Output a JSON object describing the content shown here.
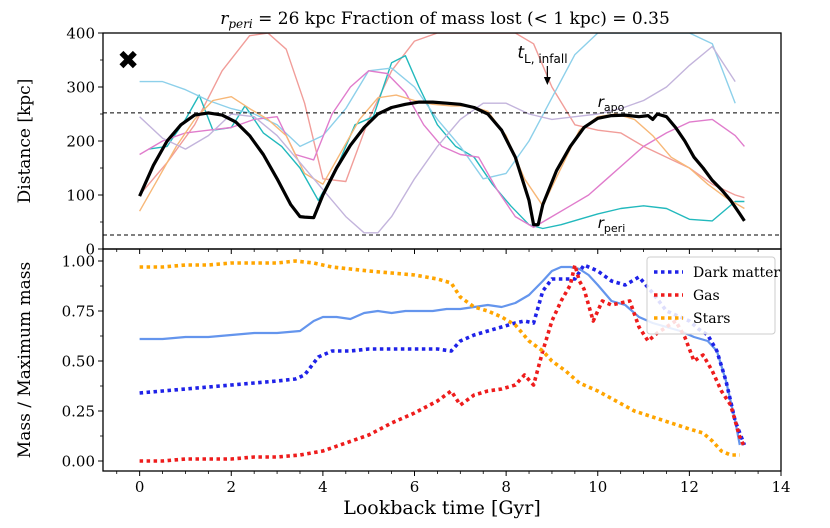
{
  "chart_data": {
    "type": "line",
    "title_prefix": "r",
    "title_sub": "peri",
    "title_rest": " = 26 kpc  Fraction of mass lost (< 1 kpc) = 0.35",
    "xlabel": "Lookback time [Gyr]",
    "xlim": [
      -0.8,
      14
    ],
    "xticks": [
      0,
      2,
      4,
      6,
      8,
      10,
      12,
      14
    ],
    "top": {
      "ylabel": "Distance [kpc]",
      "ylim": [
        0,
        400
      ],
      "yticks": [
        0,
        100,
        200,
        300,
        400
      ],
      "r_apo": 252,
      "r_peri": 26,
      "apo_label": "r",
      "apo_sub": "apo",
      "peri_label": "r",
      "peri_sub": "peri",
      "infall_label": "t",
      "infall_sub": "L, infall",
      "infall_time": 8.9,
      "marker_time": -0.25,
      "marker_value": 350,
      "main": {
        "name": "orbit",
        "color": "#000000",
        "x": [
          0,
          0.3,
          0.6,
          0.9,
          1.2,
          1.5,
          1.8,
          2.1,
          2.4,
          2.7,
          3.0,
          3.3,
          3.5,
          3.6,
          3.8,
          4.0,
          4.3,
          4.6,
          4.9,
          5.2,
          5.5,
          5.8,
          6.1,
          6.4,
          6.7,
          7.0,
          7.3,
          7.6,
          7.9,
          8.2,
          8.5,
          8.6,
          8.7,
          8.8,
          9.1,
          9.4,
          9.7,
          10.0,
          10.3,
          10.6,
          10.9,
          11.1,
          11.2,
          11.3,
          11.5,
          11.7,
          11.9,
          12.1,
          12.3,
          12.5,
          12.7,
          12.9,
          13.1,
          13.2
        ],
        "y": [
          98,
          155,
          200,
          230,
          248,
          252,
          248,
          235,
          210,
          175,
          130,
          82,
          60,
          59,
          58,
          100,
          150,
          192,
          225,
          250,
          262,
          268,
          272,
          272,
          270,
          268,
          262,
          250,
          220,
          170,
          90,
          45,
          45,
          82,
          145,
          190,
          225,
          242,
          247,
          248,
          245,
          247,
          240,
          250,
          245,
          225,
          200,
          170,
          150,
          127,
          110,
          90,
          65,
          52
        ]
      },
      "tracks": [
        {
          "name": "salmon-track",
          "color": "#f19d99",
          "x": [
            0,
            0.6,
            1.2,
            1.8,
            2.4,
            2.8,
            3.2,
            3.6,
            4.0,
            4.5,
            5.0,
            5.5,
            6.0,
            6.5,
            7.0,
            7.4,
            7.8,
            8.2,
            8.6,
            9.0,
            9.5,
            10.0,
            10.5,
            11.0,
            11.5,
            12.0,
            12.5,
            13.0,
            13.2
          ],
          "y": [
            100,
            160,
            230,
            330,
            395,
            400,
            370,
            270,
            130,
            125,
            240,
            330,
            385,
            400,
            400,
            400,
            400,
            400,
            380,
            300,
            230,
            220,
            215,
            190,
            170,
            150,
            120,
            100,
            95
          ]
        },
        {
          "name": "teal-track",
          "color": "#22b9bd",
          "x": [
            0.2,
            0.6,
            1.0,
            1.3,
            1.6,
            2.0,
            2.3,
            2.7,
            3.1,
            3.5,
            3.9,
            4.3,
            4.7,
            5.1,
            5.5,
            5.8,
            6.1,
            6.5,
            6.9,
            7.3,
            7.7,
            8.1,
            8.5,
            8.8,
            9.2,
            9.6,
            10.0,
            10.5,
            11.0,
            11.5,
            12.0,
            12.5,
            13.0,
            13.2
          ],
          "y": [
            185,
            190,
            240,
            285,
            220,
            225,
            265,
            215,
            190,
            150,
            90,
            150,
            230,
            245,
            345,
            358,
            300,
            230,
            190,
            170,
            120,
            80,
            45,
            38,
            45,
            55,
            65,
            75,
            80,
            75,
            55,
            52,
            88,
            88
          ]
        },
        {
          "name": "lightblue-track",
          "color": "#8dd0ea",
          "x": [
            0,
            0.5,
            1.0,
            1.5,
            2.0,
            2.5,
            3.0,
            3.5,
            4.0,
            4.5,
            5.0,
            5.5,
            6.0,
            6.5,
            7.0,
            7.5,
            8.0,
            8.5,
            9.0,
            9.5,
            10.0,
            10.5,
            11.0,
            11.5,
            12.0,
            12.5,
            13.0
          ],
          "y": [
            310,
            310,
            295,
            275,
            260,
            250,
            230,
            190,
            210,
            260,
            330,
            335,
            300,
            240,
            190,
            130,
            140,
            200,
            280,
            360,
            400,
            400,
            400,
            400,
            400,
            380,
            270
          ]
        },
        {
          "name": "pink-track",
          "color": "#e07ccc",
          "x": [
            0,
            0.5,
            1.0,
            1.5,
            2.0,
            2.5,
            3.0,
            3.4,
            3.8,
            4.2,
            4.6,
            5.0,
            5.4,
            5.8,
            6.2,
            6.6,
            7.0,
            7.4,
            7.8,
            8.2,
            8.6,
            9.0,
            9.4,
            9.8,
            10.2,
            10.6,
            11.0,
            11.5,
            12.0,
            12.5,
            13.0,
            13.2
          ],
          "y": [
            175,
            200,
            215,
            220,
            225,
            240,
            245,
            175,
            165,
            250,
            300,
            330,
            325,
            290,
            230,
            190,
            175,
            170,
            110,
            60,
            40,
            60,
            80,
            100,
            130,
            160,
            190,
            215,
            235,
            240,
            210,
            190
          ]
        },
        {
          "name": "orange-track",
          "color": "#f7b777",
          "x": [
            0,
            0.4,
            0.8,
            1.2,
            1.6,
            2.0,
            2.4,
            2.8,
            3.2,
            3.6,
            4.0,
            4.4,
            4.8,
            5.2,
            5.6,
            6.0,
            6.4,
            6.8,
            7.2,
            7.6,
            8.0,
            8.4,
            8.8,
            9.2,
            9.6,
            10.0,
            10.4,
            10.8,
            11.2,
            11.6,
            12.0,
            12.4,
            12.8,
            13.2
          ],
          "y": [
            70,
            130,
            190,
            240,
            275,
            282,
            260,
            240,
            210,
            140,
            120,
            180,
            240,
            280,
            285,
            275,
            268,
            265,
            265,
            255,
            210,
            130,
            80,
            150,
            220,
            245,
            250,
            240,
            210,
            170,
            150,
            120,
            95,
            75
          ]
        },
        {
          "name": "lavender-track",
          "color": "#c3b4dc",
          "x": [
            0,
            0.5,
            1.0,
            1.5,
            2.0,
            2.5,
            3.0,
            3.5,
            4.0,
            4.5,
            4.9,
            5.2,
            5.5,
            6.0,
            6.5,
            7.0,
            7.5,
            8.0,
            8.5,
            9.0,
            9.5,
            10.0,
            10.5,
            11.0,
            11.5,
            12.0,
            12.5,
            13.0
          ],
          "y": [
            245,
            205,
            185,
            210,
            250,
            245,
            210,
            160,
            110,
            60,
            30,
            30,
            60,
            130,
            190,
            240,
            270,
            270,
            250,
            240,
            245,
            250,
            260,
            275,
            300,
            340,
            375,
            310
          ]
        }
      ]
    },
    "bottom": {
      "ylabel": "Mass / Maximum mass",
      "ylim": [
        -0.05,
        1.06
      ],
      "yticks": [
        0.0,
        0.25,
        0.5,
        0.75,
        1.0
      ],
      "ytick_labels": [
        "0.00",
        "0.25",
        "0.50",
        "0.75",
        "1.00"
      ],
      "series": [
        {
          "name": "Total",
          "color": "#6495ed",
          "style": "solid",
          "in_legend": false,
          "x": [
            0,
            0.5,
            1.0,
            1.5,
            2.0,
            2.5,
            3.0,
            3.5,
            3.8,
            4.0,
            4.3,
            4.6,
            4.9,
            5.2,
            5.5,
            5.8,
            6.1,
            6.4,
            6.7,
            7.0,
            7.3,
            7.6,
            7.9,
            8.2,
            8.5,
            8.8,
            9.0,
            9.2,
            9.4,
            9.6,
            9.8,
            10.0,
            10.3,
            10.6,
            10.9,
            11.2,
            11.5,
            11.8,
            12.1,
            12.4,
            12.6,
            12.8,
            13.0,
            13.1
          ],
          "y": [
            0.61,
            0.61,
            0.62,
            0.62,
            0.63,
            0.64,
            0.64,
            0.65,
            0.7,
            0.72,
            0.72,
            0.71,
            0.74,
            0.75,
            0.74,
            0.75,
            0.75,
            0.75,
            0.76,
            0.76,
            0.77,
            0.78,
            0.77,
            0.79,
            0.83,
            0.9,
            0.95,
            0.97,
            0.97,
            0.96,
            0.93,
            0.88,
            0.8,
            0.78,
            0.72,
            0.69,
            0.67,
            0.65,
            0.62,
            0.6,
            0.55,
            0.4,
            0.2,
            0.08
          ]
        },
        {
          "name": "Dark matter",
          "color": "#1f22e8",
          "style": "dotted",
          "in_legend": true,
          "x": [
            0,
            0.5,
            1.0,
            1.5,
            2.0,
            2.5,
            3.0,
            3.4,
            3.6,
            3.9,
            4.2,
            4.6,
            5.0,
            5.5,
            6.0,
            6.5,
            6.8,
            7.0,
            7.3,
            7.6,
            7.9,
            8.2,
            8.4,
            8.6,
            8.8,
            9.0,
            9.3,
            9.5,
            9.7,
            10.0,
            10.3,
            10.6,
            10.9,
            11.2,
            11.5,
            11.8,
            12.0,
            12.2,
            12.4,
            12.6,
            12.8,
            13.0,
            13.2
          ],
          "y": [
            0.34,
            0.35,
            0.36,
            0.37,
            0.38,
            0.39,
            0.4,
            0.41,
            0.43,
            0.52,
            0.55,
            0.55,
            0.56,
            0.56,
            0.56,
            0.56,
            0.55,
            0.6,
            0.63,
            0.65,
            0.67,
            0.69,
            0.7,
            0.69,
            0.85,
            0.91,
            0.91,
            0.91,
            0.98,
            0.95,
            0.9,
            0.88,
            0.92,
            0.84,
            0.75,
            0.72,
            0.7,
            0.66,
            0.63,
            0.55,
            0.4,
            0.2,
            0.08
          ]
        },
        {
          "name": "Gas",
          "color": "#ee1c1c",
          "style": "dotted",
          "in_legend": true,
          "x": [
            0,
            0.5,
            1.0,
            1.5,
            2.0,
            2.5,
            3.0,
            3.5,
            4.0,
            4.5,
            5.0,
            5.5,
            6.0,
            6.5,
            6.8,
            7.0,
            7.3,
            7.6,
            7.9,
            8.2,
            8.4,
            8.6,
            8.8,
            9.0,
            9.2,
            9.4,
            9.5,
            9.6,
            9.7,
            9.9,
            10.1,
            10.3,
            10.5,
            10.7,
            10.9,
            11.1,
            11.3,
            11.5,
            11.7,
            11.9,
            12.1,
            12.3,
            12.5,
            12.7,
            12.9,
            13.1,
            13.2
          ],
          "y": [
            0.0,
            0.0,
            0.01,
            0.01,
            0.01,
            0.02,
            0.02,
            0.03,
            0.05,
            0.09,
            0.13,
            0.19,
            0.24,
            0.3,
            0.35,
            0.28,
            0.33,
            0.35,
            0.36,
            0.38,
            0.43,
            0.38,
            0.55,
            0.7,
            0.8,
            0.88,
            0.98,
            0.9,
            0.86,
            0.7,
            0.8,
            0.78,
            0.79,
            0.8,
            0.67,
            0.6,
            0.64,
            0.67,
            0.7,
            0.62,
            0.5,
            0.53,
            0.45,
            0.35,
            0.28,
            0.12,
            0.07
          ]
        },
        {
          "name": "Stars",
          "color": "#ffa500",
          "style": "dotted",
          "in_legend": true,
          "x": [
            0,
            0.5,
            1.0,
            1.5,
            2.0,
            2.5,
            3.0,
            3.4,
            3.8,
            4.2,
            4.6,
            5.0,
            5.5,
            6.0,
            6.5,
            6.8,
            7.0,
            7.3,
            7.6,
            7.9,
            8.2,
            8.5,
            8.8,
            9.0,
            9.3,
            9.6,
            10.0,
            10.4,
            10.8,
            11.2,
            11.6,
            12.0,
            12.3,
            12.5,
            12.7,
            12.9,
            13.1
          ],
          "y": [
            0.97,
            0.97,
            0.98,
            0.98,
            0.99,
            0.99,
            0.99,
            1.0,
            0.99,
            0.97,
            0.96,
            0.95,
            0.94,
            0.93,
            0.91,
            0.89,
            0.82,
            0.77,
            0.75,
            0.72,
            0.68,
            0.6,
            0.55,
            0.5,
            0.45,
            0.39,
            0.35,
            0.3,
            0.25,
            0.22,
            0.19,
            0.16,
            0.14,
            0.1,
            0.05,
            0.03,
            0.03
          ]
        }
      ]
    }
  }
}
